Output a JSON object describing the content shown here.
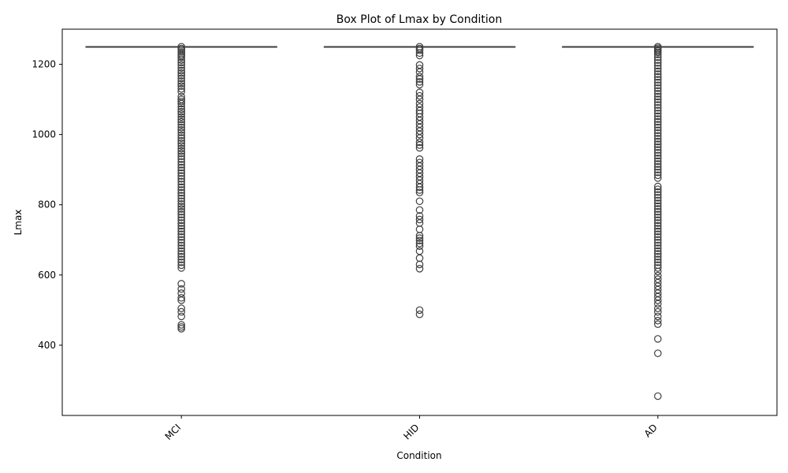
{
  "chart_data": {
    "type": "box",
    "title": "Box Plot of Lmax by Condition",
    "xlabel": "Condition",
    "ylabel": "Lmax",
    "ylim": [
      200,
      1300
    ],
    "yticks": [
      400,
      600,
      800,
      1000,
      1200
    ],
    "categories": [
      "MCI",
      "HID",
      "AD"
    ],
    "boxes": [
      {
        "name": "MCI",
        "median": 1250,
        "q1": 1250,
        "q3": 1250,
        "whisker_low": 1250,
        "whisker_high": 1250,
        "outliers": [
          1250,
          1245,
          1240,
          1235,
          1230,
          1225,
          1220,
          1212,
          1205,
          1198,
          1190,
          1182,
          1175,
          1168,
          1160,
          1152,
          1145,
          1138,
          1130,
          1122,
          1108,
          1100,
          1094,
          1088,
          1080,
          1072,
          1065,
          1058,
          1050,
          1043,
          1036,
          1028,
          1020,
          1013,
          1006,
          998,
          990,
          982,
          975,
          968,
          960,
          953,
          946,
          938,
          930,
          922,
          914,
          906,
          898,
          890,
          882,
          874,
          866,
          858,
          850,
          842,
          834,
          826,
          818,
          810,
          802,
          795,
          788,
          780,
          772,
          764,
          756,
          748,
          740,
          732,
          724,
          716,
          708,
          700,
          692,
          684,
          676,
          668,
          660,
          652,
          644,
          636,
          628,
          620,
          575,
          560,
          548,
          535,
          528,
          505,
          495,
          482,
          458,
          452,
          447
        ]
      },
      {
        "name": "HID",
        "median": 1250,
        "q1": 1250,
        "q3": 1250,
        "whisker_low": 1250,
        "whisker_high": 1250,
        "outliers": [
          1250,
          1245,
          1240,
          1232,
          1225,
          1198,
          1188,
          1178,
          1165,
          1158,
          1150,
          1142,
          1120,
          1110,
          1100,
          1088,
          1078,
          1068,
          1060,
          1050,
          1040,
          1030,
          1020,
          1010,
          1000,
          990,
          978,
          970,
          962,
          930,
          920,
          910,
          900,
          890,
          880,
          870,
          860,
          850,
          842,
          835,
          810,
          785,
          768,
          758,
          748,
          730,
          712,
          705,
          698,
          690,
          682,
          668,
          648,
          630,
          618,
          500,
          488
        ]
      },
      {
        "name": "AD",
        "median": 1250,
        "q1": 1250,
        "q3": 1250,
        "whisker_low": 1250,
        "whisker_high": 1250,
        "outliers": [
          1250,
          1246,
          1242,
          1238,
          1234,
          1228,
          1220,
          1212,
          1204,
          1196,
          1188,
          1180,
          1172,
          1164,
          1156,
          1148,
          1140,
          1132,
          1124,
          1116,
          1108,
          1100,
          1092,
          1084,
          1076,
          1068,
          1060,
          1052,
          1044,
          1036,
          1028,
          1020,
          1012,
          1004,
          996,
          988,
          980,
          972,
          964,
          956,
          948,
          940,
          932,
          924,
          916,
          908,
          900,
          892,
          884,
          876,
          852,
          844,
          836,
          828,
          820,
          812,
          804,
          796,
          788,
          780,
          772,
          764,
          756,
          748,
          740,
          732,
          724,
          716,
          708,
          700,
          692,
          684,
          676,
          668,
          660,
          652,
          644,
          636,
          628,
          620,
          610,
          598,
          588,
          578,
          568,
          558,
          548,
          538,
          528,
          518,
          505,
          495,
          482,
          470,
          460,
          418,
          377,
          255
        ]
      }
    ],
    "colors": {
      "stroke": "#3f3f3f",
      "axis": "#000000",
      "background": "#ffffff"
    }
  }
}
